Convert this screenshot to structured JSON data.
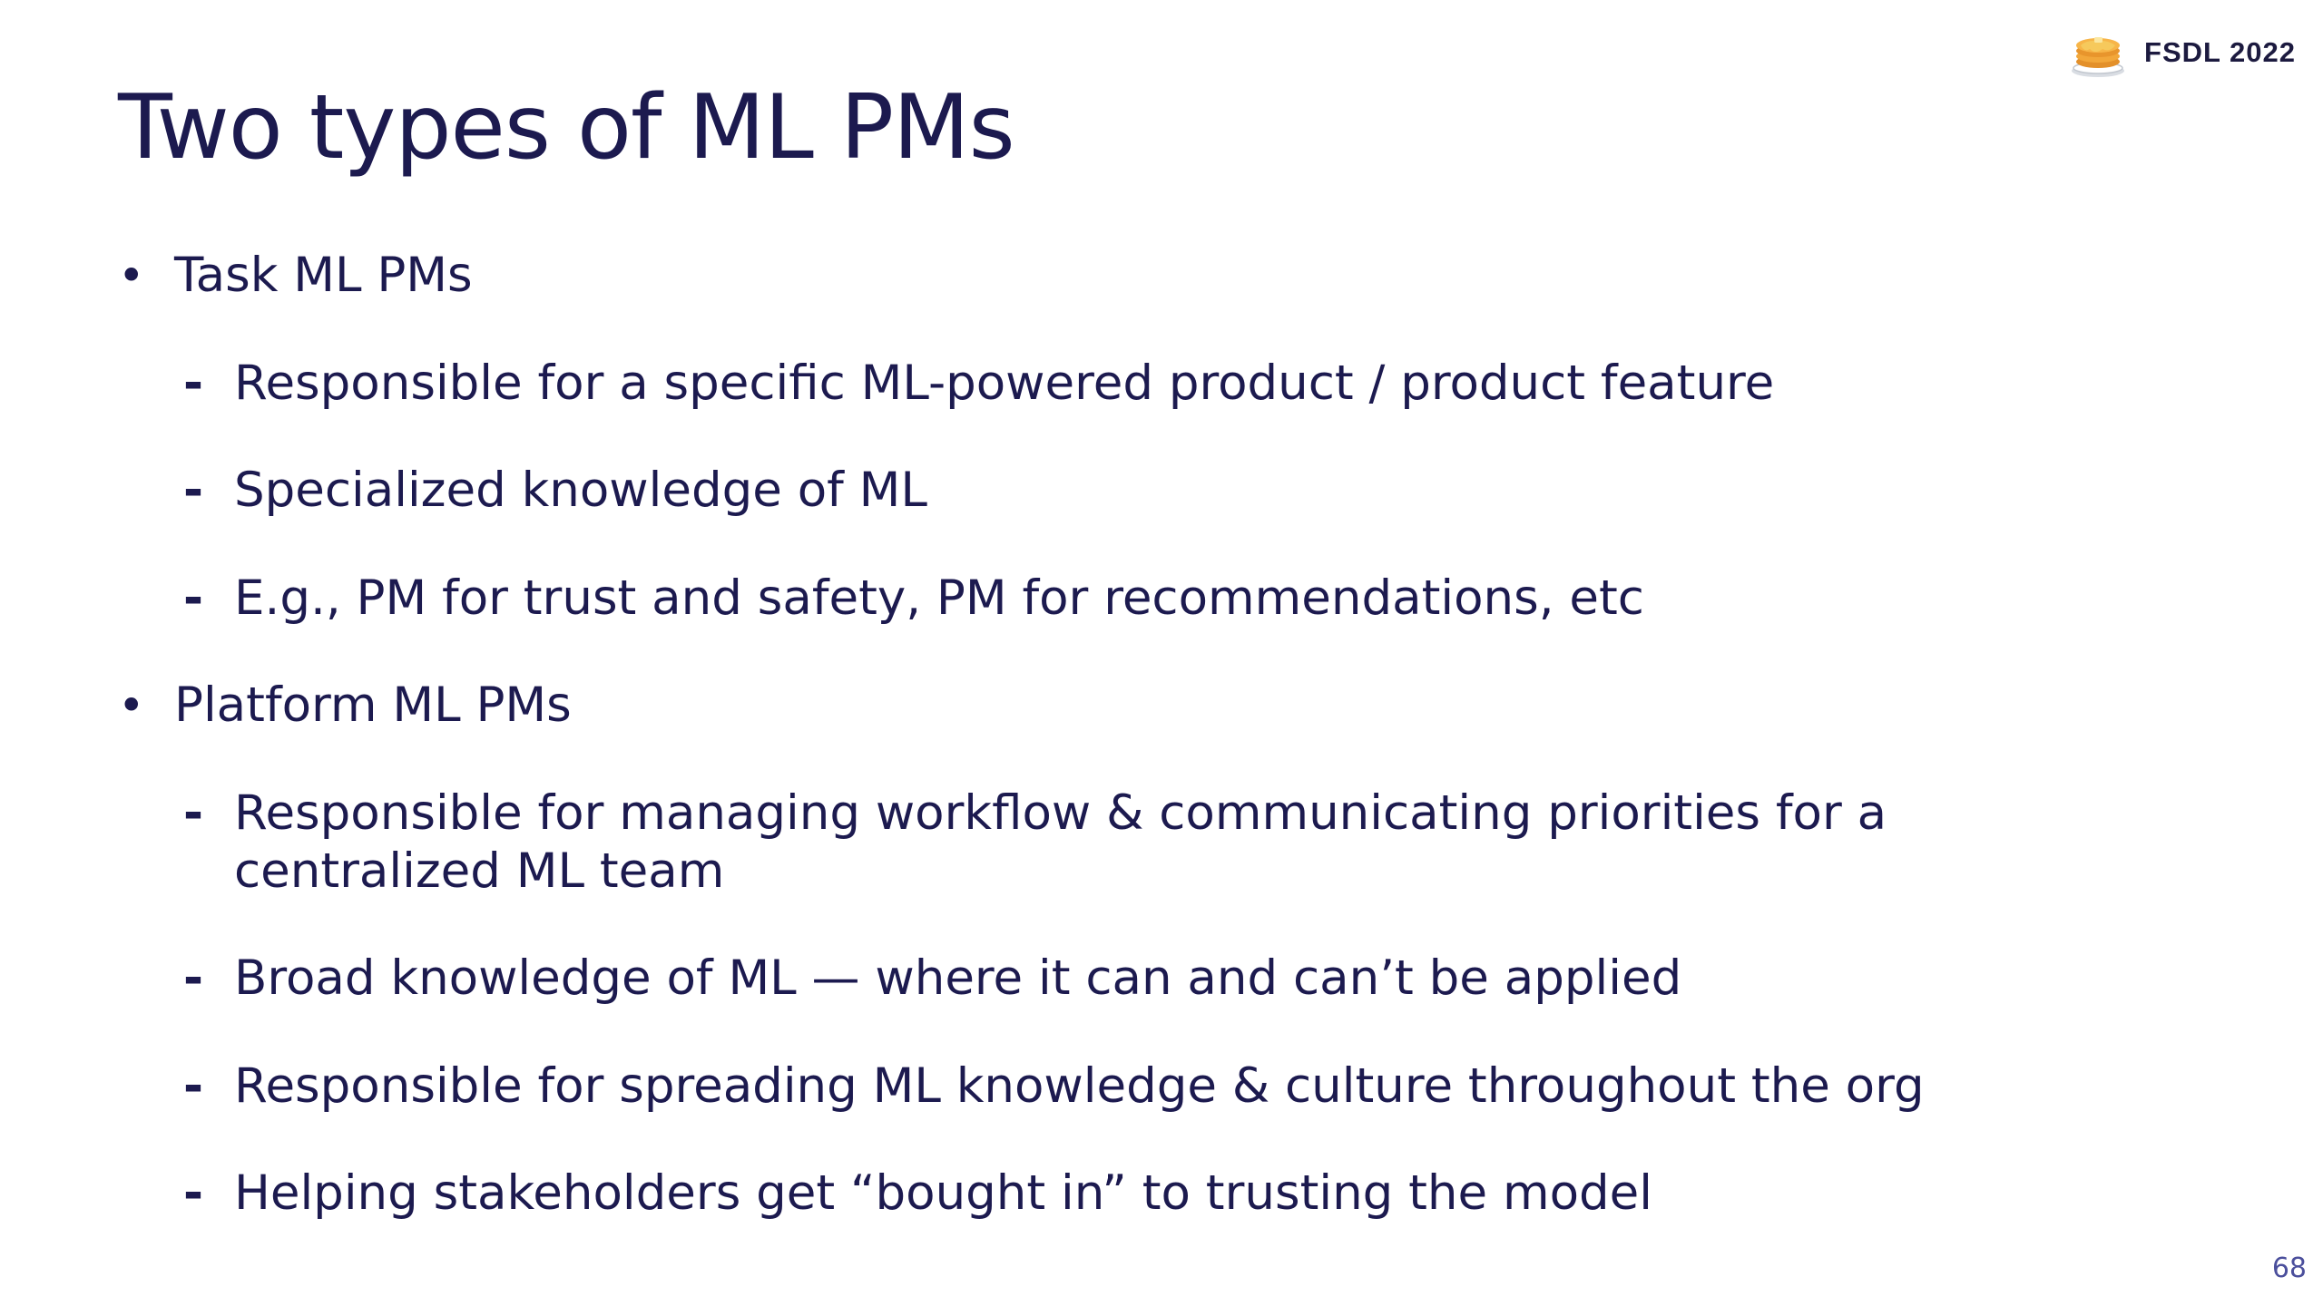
{
  "header": {
    "badge_text": "FSDL 2022",
    "badge_icon": "pancake-icon"
  },
  "title": "Two types of ML PMs",
  "bullets": [
    {
      "label": "Task ML PMs",
      "items": [
        "Responsible for a specific ML-powered product / product feature",
        "Specialized knowledge of ML",
        "E.g., PM for trust and safety, PM for recommendations, etc"
      ]
    },
    {
      "label": "Platform ML PMs",
      "items": [
        "Responsible for managing workflow & communicating priorities for a centralized ML team",
        "Broad knowledge of ML — where it can and can’t be applied",
        "Responsible for spreading ML knowledge & culture throughout the org",
        "Helping stakeholders get “bought in” to trusting the model"
      ]
    }
  ],
  "bullet_symbol": "•",
  "sub_bullet_symbol": "-",
  "page_number": "68",
  "colors": {
    "text": "#1c1a4f",
    "page_number": "#4b4f9c",
    "background": "#ffffff"
  }
}
